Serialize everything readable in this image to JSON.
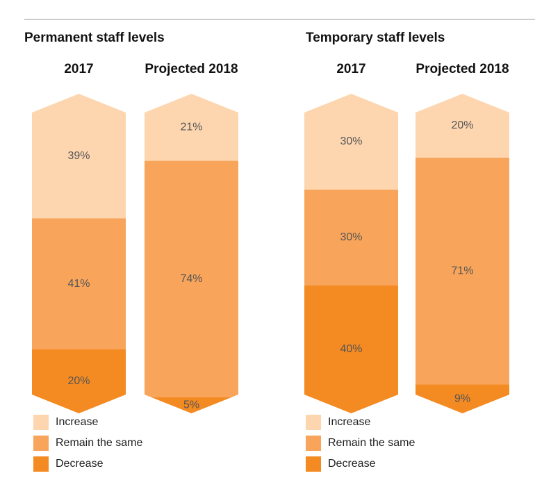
{
  "chart_data": [
    {
      "type": "stacked_bar",
      "title": "Permanent staff levels",
      "categories": [
        "2017",
        "Projected 2018"
      ],
      "series": [
        {
          "name": "Increase",
          "color": "#fdd6b0",
          "values": [
            39,
            21
          ],
          "value_labels": [
            "39%",
            "21%"
          ]
        },
        {
          "name": "Remain the same",
          "color": "#f8a55b",
          "values": [
            41,
            74
          ],
          "value_labels": [
            "41%",
            "74%"
          ]
        },
        {
          "name": "Decrease",
          "color": "#f48a22",
          "values": [
            20,
            5
          ],
          "value_labels": [
            "20%",
            "5%"
          ]
        }
      ]
    },
    {
      "type": "stacked_bar",
      "title": "Temporary staff levels",
      "categories": [
        "2017",
        "Projected 2018"
      ],
      "series": [
        {
          "name": "Increase",
          "color": "#fdd6b0",
          "values": [
            30,
            20
          ],
          "value_labels": [
            "30%",
            "20%"
          ]
        },
        {
          "name": "Remain the same",
          "color": "#f8a55b",
          "values": [
            30,
            71
          ],
          "value_labels": [
            "30%",
            "71%"
          ]
        },
        {
          "name": "Decrease",
          "color": "#f48a22",
          "values": [
            40,
            9
          ],
          "value_labels": [
            "40%",
            "9%"
          ]
        }
      ]
    }
  ]
}
